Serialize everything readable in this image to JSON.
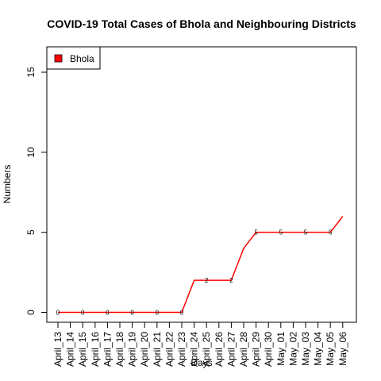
{
  "chart_data": {
    "type": "line",
    "title": "COVID-19 Total Cases of Bhola and Neighbouring Districts",
    "xlabel": "Days",
    "ylabel": "Numbers",
    "ylim": [
      0,
      16
    ],
    "yticks": [
      0,
      5,
      10,
      15
    ],
    "grid": false,
    "legend_position": "top-left",
    "categories": [
      "April_13",
      "April_14",
      "April_15",
      "April_16",
      "April_17",
      "April_18",
      "April_19",
      "April_20",
      "April_21",
      "April_22",
      "April_23",
      "April_24",
      "April_25",
      "April_26",
      "April_27",
      "April_28",
      "April_29",
      "April_30",
      "May_01",
      "May_02",
      "May_03",
      "May_04",
      "May_05",
      "May_06"
    ],
    "series": [
      {
        "name": "Bhola",
        "color": "#ff0000",
        "values": [
          0,
          0,
          0,
          0,
          0,
          0,
          0,
          0,
          0,
          0,
          0,
          2,
          2,
          2,
          2,
          4,
          5,
          5,
          5,
          5,
          5,
          5,
          5,
          6
        ]
      }
    ],
    "data_labels": [
      {
        "index": 0,
        "text": "0"
      },
      {
        "index": 2,
        "text": "0"
      },
      {
        "index": 4,
        "text": "0"
      },
      {
        "index": 6,
        "text": "0"
      },
      {
        "index": 8,
        "text": "0"
      },
      {
        "index": 10,
        "text": "0"
      },
      {
        "index": 12,
        "text": "2"
      },
      {
        "index": 14,
        "text": "2"
      },
      {
        "index": 16,
        "text": "5"
      },
      {
        "index": 18,
        "text": "5"
      },
      {
        "index": 20,
        "text": "5"
      },
      {
        "index": 22,
        "text": "5"
      }
    ]
  }
}
